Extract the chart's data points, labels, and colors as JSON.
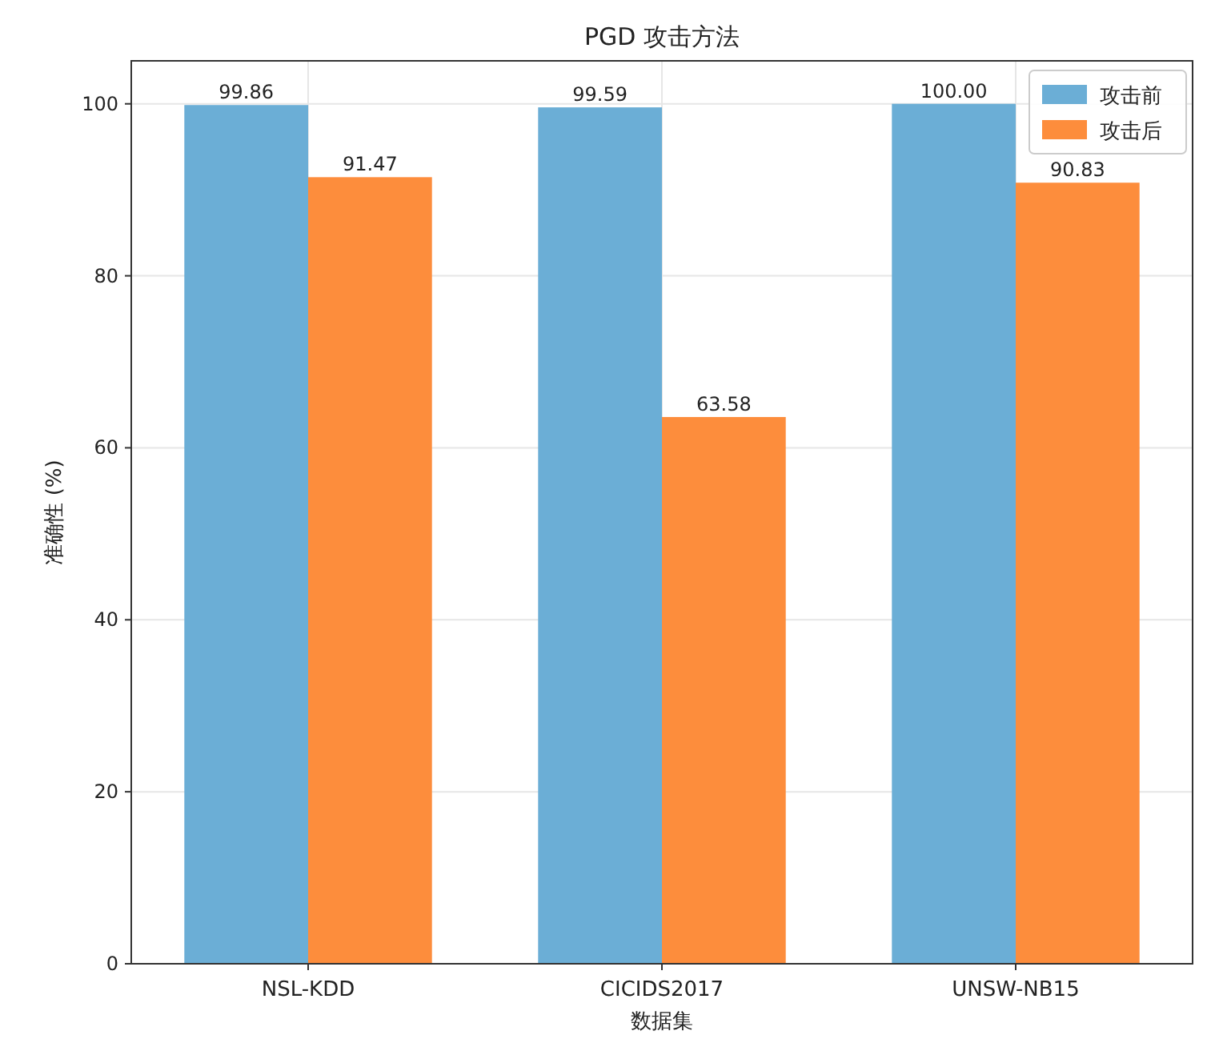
{
  "chart_data": {
    "type": "bar",
    "title": "PGD 攻击方法",
    "xlabel": "数据集",
    "ylabel": "准确性 (%)",
    "categories": [
      "NSL-KDD",
      "CICIDS2017",
      "UNSW-NB15"
    ],
    "series": [
      {
        "name": "攻击前",
        "color": "#6baed6",
        "values": [
          99.86,
          99.59,
          100.0
        ],
        "value_labels": [
          "99.86",
          "99.59",
          "100.00"
        ]
      },
      {
        "name": "攻击后",
        "color": "#fd8d3c",
        "values": [
          91.47,
          63.58,
          90.83
        ],
        "value_labels": [
          "91.47",
          "63.58",
          "90.83"
        ]
      }
    ],
    "ylim": [
      0,
      105
    ],
    "yticks": [
      0,
      20,
      40,
      60,
      80,
      100
    ],
    "grid": true,
    "legend": "top right"
  }
}
